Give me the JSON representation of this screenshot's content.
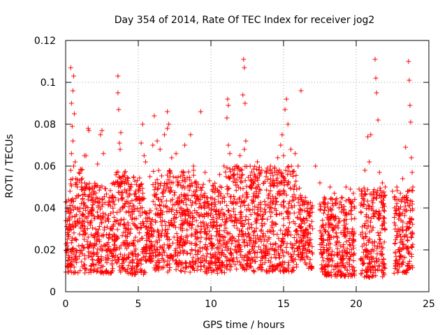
{
  "chart_data": {
    "type": "scatter",
    "title": "Day 354 of 2014, Rate Of TEC Index for receiver jog2",
    "xlabel": "GPS time / hours",
    "ylabel": "ROTI / TECUs",
    "xlim": [
      0,
      25
    ],
    "ylim": [
      0,
      0.12
    ],
    "x_ticks": [
      0,
      5,
      10,
      15,
      20,
      25
    ],
    "y_ticks": [
      0,
      0.02,
      0.04,
      0.06,
      0.08,
      0.1,
      0.12
    ],
    "x_tick_labels": [
      "0",
      "5",
      "10",
      "15",
      "20",
      "25"
    ],
    "y_tick_labels": [
      "0",
      "0.02",
      "0.04",
      "0.06",
      "0.08",
      "0.1",
      "0.12"
    ],
    "grid": true,
    "marker": "plus",
    "color": "#ff0000",
    "series": [
      {
        "name": "jog2",
        "points": [
          [
            0.05,
            0.043
          ],
          [
            0.1,
            0.022
          ],
          [
            0.2,
            0.035
          ],
          [
            0.3,
            0.048
          ],
          [
            0.35,
            0.107
          ],
          [
            0.4,
            0.09
          ],
          [
            0.45,
            0.079
          ],
          [
            0.5,
            0.096
          ],
          [
            0.55,
            0.103
          ],
          [
            0.6,
            0.085
          ],
          [
            0.65,
            0.062
          ],
          [
            0.4,
            0.066
          ],
          [
            0.35,
            0.058
          ],
          [
            0.5,
            0.072
          ],
          [
            0.7,
            0.054
          ],
          [
            0.8,
            0.05
          ],
          [
            0.9,
            0.046
          ],
          [
            1.1,
            0.052
          ],
          [
            1.3,
            0.065
          ],
          [
            1.4,
            0.065
          ],
          [
            1.55,
            0.078
          ],
          [
            1.6,
            0.077
          ],
          [
            1.8,
            0.045
          ],
          [
            2.0,
            0.05
          ],
          [
            2.2,
            0.061
          ],
          [
            2.4,
            0.075
          ],
          [
            2.6,
            0.066
          ],
          [
            2.5,
            0.077
          ],
          [
            3.0,
            0.045
          ],
          [
            3.3,
            0.052
          ],
          [
            3.6,
            0.103
          ],
          [
            3.6,
            0.095
          ],
          [
            3.65,
            0.087
          ],
          [
            3.7,
            0.071
          ],
          [
            3.75,
            0.068
          ],
          [
            3.8,
            0.076
          ],
          [
            4.0,
            0.055
          ],
          [
            4.2,
            0.052
          ],
          [
            4.5,
            0.05
          ],
          [
            4.8,
            0.047
          ],
          [
            5.0,
            0.049
          ],
          [
            5.2,
            0.071
          ],
          [
            5.3,
            0.08
          ],
          [
            5.4,
            0.065
          ],
          [
            5.5,
            0.062
          ],
          [
            5.8,
            0.055
          ],
          [
            6.0,
            0.07
          ],
          [
            6.1,
            0.084
          ],
          [
            6.3,
            0.072
          ],
          [
            6.5,
            0.068
          ],
          [
            6.8,
            0.075
          ],
          [
            7.0,
            0.086
          ],
          [
            7.0,
            0.078
          ],
          [
            7.1,
            0.08
          ],
          [
            7.3,
            0.064
          ],
          [
            7.6,
            0.066
          ],
          [
            7.9,
            0.055
          ],
          [
            8.2,
            0.07
          ],
          [
            8.6,
            0.075
          ],
          [
            8.8,
            0.06
          ],
          [
            9.0,
            0.05
          ],
          [
            9.3,
            0.086
          ],
          [
            9.6,
            0.057
          ],
          [
            9.9,
            0.053
          ],
          [
            10.3,
            0.049
          ],
          [
            10.6,
            0.056
          ],
          [
            10.9,
            0.06
          ],
          [
            11.1,
            0.083
          ],
          [
            11.15,
            0.092
          ],
          [
            11.2,
            0.089
          ],
          [
            11.2,
            0.07
          ],
          [
            11.3,
            0.066
          ],
          [
            11.6,
            0.058
          ],
          [
            11.8,
            0.06
          ],
          [
            12.0,
            0.065
          ],
          [
            12.2,
            0.094
          ],
          [
            12.25,
            0.111
          ],
          [
            12.3,
            0.107
          ],
          [
            12.35,
            0.09
          ],
          [
            12.4,
            0.072
          ],
          [
            12.3,
            0.068
          ],
          [
            12.7,
            0.06
          ],
          [
            13.2,
            0.062
          ],
          [
            13.5,
            0.058
          ],
          [
            13.8,
            0.055
          ],
          [
            14.1,
            0.06
          ],
          [
            14.4,
            0.057
          ],
          [
            14.6,
            0.064
          ],
          [
            14.8,
            0.07
          ],
          [
            14.9,
            0.075
          ],
          [
            15.0,
            0.065
          ],
          [
            15.1,
            0.087
          ],
          [
            15.2,
            0.092
          ],
          [
            15.3,
            0.08
          ],
          [
            15.5,
            0.068
          ],
          [
            15.8,
            0.066
          ],
          [
            16.0,
            0.06
          ],
          [
            16.2,
            0.096
          ],
          [
            16.5,
            0.045
          ],
          [
            17.2,
            0.06
          ],
          [
            17.5,
            0.052
          ],
          [
            17.8,
            0.045
          ],
          [
            18.2,
            0.05
          ],
          [
            18.5,
            0.047
          ],
          [
            19.0,
            0.045
          ],
          [
            19.3,
            0.05
          ],
          [
            19.6,
            0.049
          ],
          [
            19.8,
            0.047
          ],
          [
            20.2,
            0.049
          ],
          [
            20.6,
            0.058
          ],
          [
            20.8,
            0.074
          ],
          [
            21.0,
            0.075
          ],
          [
            20.9,
            0.062
          ],
          [
            21.3,
            0.111
          ],
          [
            21.35,
            0.102
          ],
          [
            21.4,
            0.095
          ],
          [
            21.5,
            0.082
          ],
          [
            21.6,
            0.057
          ],
          [
            21.8,
            0.052
          ],
          [
            22.0,
            0.05
          ],
          [
            22.5,
            0.048
          ],
          [
            22.8,
            0.05
          ],
          [
            23.2,
            0.054
          ],
          [
            23.4,
            0.069
          ],
          [
            23.6,
            0.11
          ],
          [
            23.65,
            0.101
          ],
          [
            23.7,
            0.089
          ],
          [
            23.75,
            0.081
          ],
          [
            23.8,
            0.064
          ],
          [
            23.85,
            0.057
          ],
          [
            23.9,
            0.05
          ]
        ]
      }
    ],
    "dense_bands": [
      {
        "x": [
          0.0,
          0.35
        ],
        "y_lo": 0.005,
        "y_hi": 0.044
      },
      {
        "x": [
          0.35,
          1.2
        ],
        "y_lo": 0.004,
        "y_hi": 0.06
      },
      {
        "x": [
          1.2,
          3.4
        ],
        "y_lo": 0.005,
        "y_hi": 0.052
      },
      {
        "x": [
          3.4,
          4.2
        ],
        "y_lo": 0.005,
        "y_hi": 0.058
      },
      {
        "x": [
          4.2,
          5.5
        ],
        "y_lo": 0.004,
        "y_hi": 0.055
      },
      {
        "x": [
          5.5,
          6.0
        ],
        "y_lo": 0.012,
        "y_hi": 0.04
      },
      {
        "x": [
          6.0,
          9.0
        ],
        "y_lo": 0.005,
        "y_hi": 0.058
      },
      {
        "x": [
          9.0,
          11.0
        ],
        "y_lo": 0.005,
        "y_hi": 0.052
      },
      {
        "x": [
          11.0,
          12.8
        ],
        "y_lo": 0.006,
        "y_hi": 0.06
      },
      {
        "x": [
          12.8,
          15.9
        ],
        "y_lo": 0.005,
        "y_hi": 0.06
      },
      {
        "x": [
          15.9,
          16.3
        ],
        "y_lo": 0.012,
        "y_hi": 0.05
      },
      {
        "x": [
          16.3,
          17.0
        ],
        "y_lo": 0.008,
        "y_hi": 0.044
      },
      {
        "x": [
          17.5,
          19.9
        ],
        "y_lo": 0.004,
        "y_hi": 0.045
      },
      {
        "x": [
          20.3,
          22.0
        ],
        "y_lo": 0.003,
        "y_hi": 0.05
      },
      {
        "x": [
          22.6,
          23.9
        ],
        "y_lo": 0.005,
        "y_hi": 0.049
      }
    ]
  }
}
